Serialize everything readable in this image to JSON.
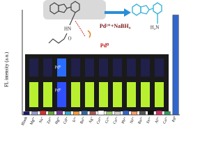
{
  "chart_data": {
    "type": "bar",
    "y_label": "FL intensity (a.u.)",
    "annotations": [
      "Pd²⁺+NaBH₄",
      "Pd⁰",
      "HN",
      "O",
      "H₂N",
      "Pd⁰",
      "Pd⁰"
    ],
    "categories": [
      "Blank",
      "Mg²⁺",
      "Na⁺",
      "Zn²⁺",
      "Hg²⁺",
      "Cd²⁺",
      "Ir³⁺",
      "Ba²⁺",
      "Ag⁺",
      "Co²⁺",
      "Cr³⁺",
      "Cu²⁺",
      "Pb²⁺",
      "Ni²⁺",
      "Ru³⁺",
      "Fe³⁺",
      "Al³⁺",
      "Ca²⁺",
      "Pd⁰"
    ],
    "values": [
      3,
      3,
      4,
      3,
      4,
      3,
      3,
      4,
      3,
      4,
      3,
      3,
      4,
      3,
      3,
      4,
      4,
      3,
      95
    ],
    "colors": [
      "#1a1a66",
      "#9999cc",
      "#cc3333",
      "#66aa33",
      "#7a3a99",
      "#33aacc",
      "#ff9933",
      "#336699",
      "#aa5555",
      "#ffffff",
      "#99cc66",
      "#cccccc",
      "#3366cc",
      "#ff9966",
      "#555555",
      "#111111",
      "#cc3366",
      "#339966",
      "#3366cc"
    ],
    "ylim": [
      0,
      100
    ]
  }
}
